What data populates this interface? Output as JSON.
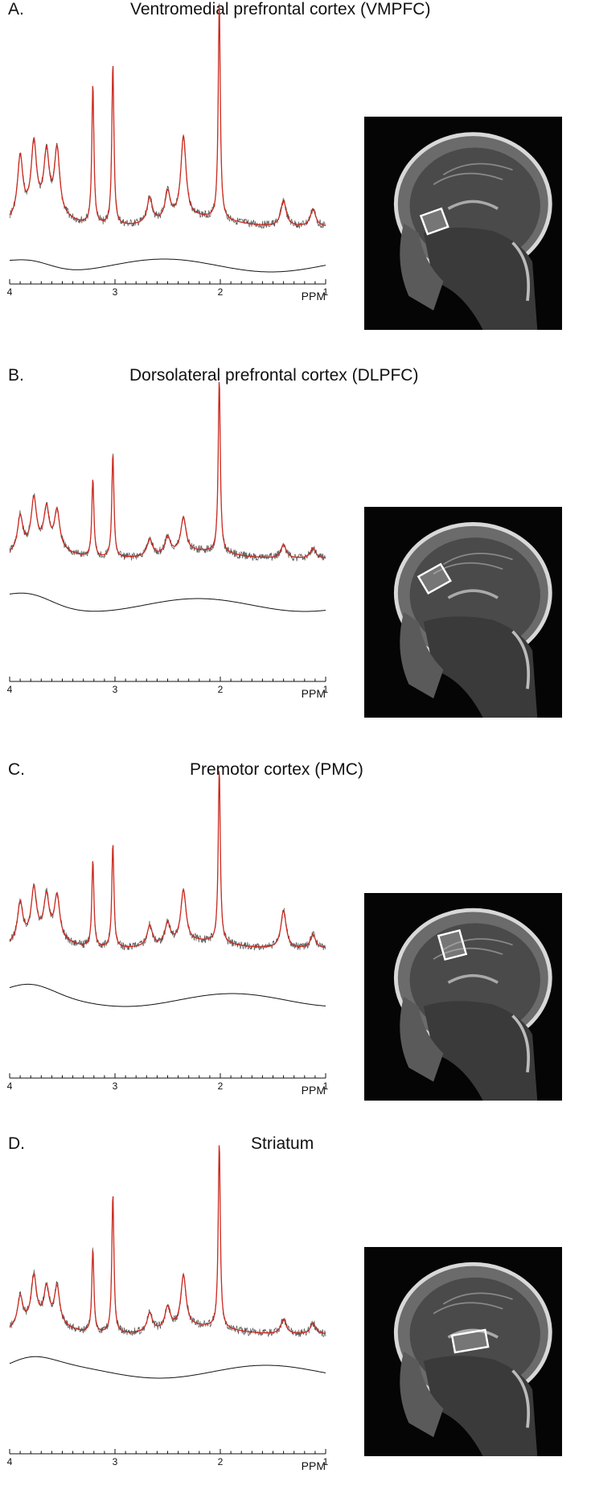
{
  "figure": {
    "axis_unit": "PPM",
    "x_ticks": [
      "4",
      "3",
      "2",
      "1"
    ],
    "panels": [
      {
        "letter": "A.",
        "title": "Ventromedial prefrontal cortex (VMPFC)",
        "voxel": "VMPFC"
      },
      {
        "letter": "B.",
        "title": "Dorsolateral prefrontal cortex (DLPFC)",
        "voxel": "DLPFC"
      },
      {
        "letter": "C.",
        "title": "Premotor cortex (PMC)",
        "voxel": "PMC"
      },
      {
        "letter": "D.",
        "title": "Striatum",
        "voxel": "Striatum"
      }
    ]
  },
  "colors": {
    "fit": "#cc2a1f",
    "data": "#555555",
    "baseline": "#111111",
    "mri_bg": "#050505",
    "voxel": "#ffffff"
  },
  "chart_data": [
    {
      "type": "line",
      "panel": "A.",
      "xlim": [
        4,
        1
      ],
      "x_reversed": true,
      "series": [],
      "peaks_ppm": [
        3.9,
        3.77,
        3.65,
        3.55,
        3.21,
        3.02,
        2.67,
        2.5,
        2.35,
        2.01,
        1.4,
        1.12
      ],
      "peaks_rel_height": [
        0.28,
        0.32,
        0.27,
        0.3,
        0.65,
        0.75,
        0.12,
        0.13,
        0.38,
        1.0,
        0.12,
        0.08
      ]
    },
    {
      "type": "line",
      "panel": "B.",
      "xlim": [
        4,
        1
      ],
      "x_reversed": true,
      "series": [],
      "peaks_ppm": [
        3.9,
        3.77,
        3.65,
        3.55,
        3.21,
        3.02,
        2.67,
        2.5,
        2.35,
        2.01,
        1.4,
        1.12
      ],
      "peaks_rel_height": [
        0.2,
        0.28,
        0.22,
        0.22,
        0.45,
        0.6,
        0.1,
        0.1,
        0.2,
        1.0,
        0.08,
        0.06
      ]
    },
    {
      "type": "line",
      "panel": "C.",
      "xlim": [
        4,
        1
      ],
      "x_reversed": true,
      "series": [],
      "peaks_ppm": [
        3.9,
        3.77,
        3.65,
        3.55,
        3.21,
        3.02,
        2.67,
        2.5,
        2.35,
        2.01,
        1.4,
        1.12
      ],
      "peaks_rel_height": [
        0.22,
        0.28,
        0.23,
        0.25,
        0.5,
        0.6,
        0.12,
        0.12,
        0.3,
        1.0,
        0.22,
        0.08
      ]
    },
    {
      "type": "line",
      "panel": "D.",
      "xlim": [
        4,
        1
      ],
      "x_reversed": true,
      "series": [],
      "peaks_ppm": [
        3.9,
        3.77,
        3.65,
        3.55,
        3.21,
        3.02,
        2.67,
        2.5,
        2.35,
        2.01,
        1.4,
        1.12
      ],
      "peaks_rel_height": [
        0.16,
        0.25,
        0.18,
        0.2,
        0.45,
        0.75,
        0.1,
        0.12,
        0.28,
        1.0,
        0.08,
        0.06
      ]
    }
  ]
}
